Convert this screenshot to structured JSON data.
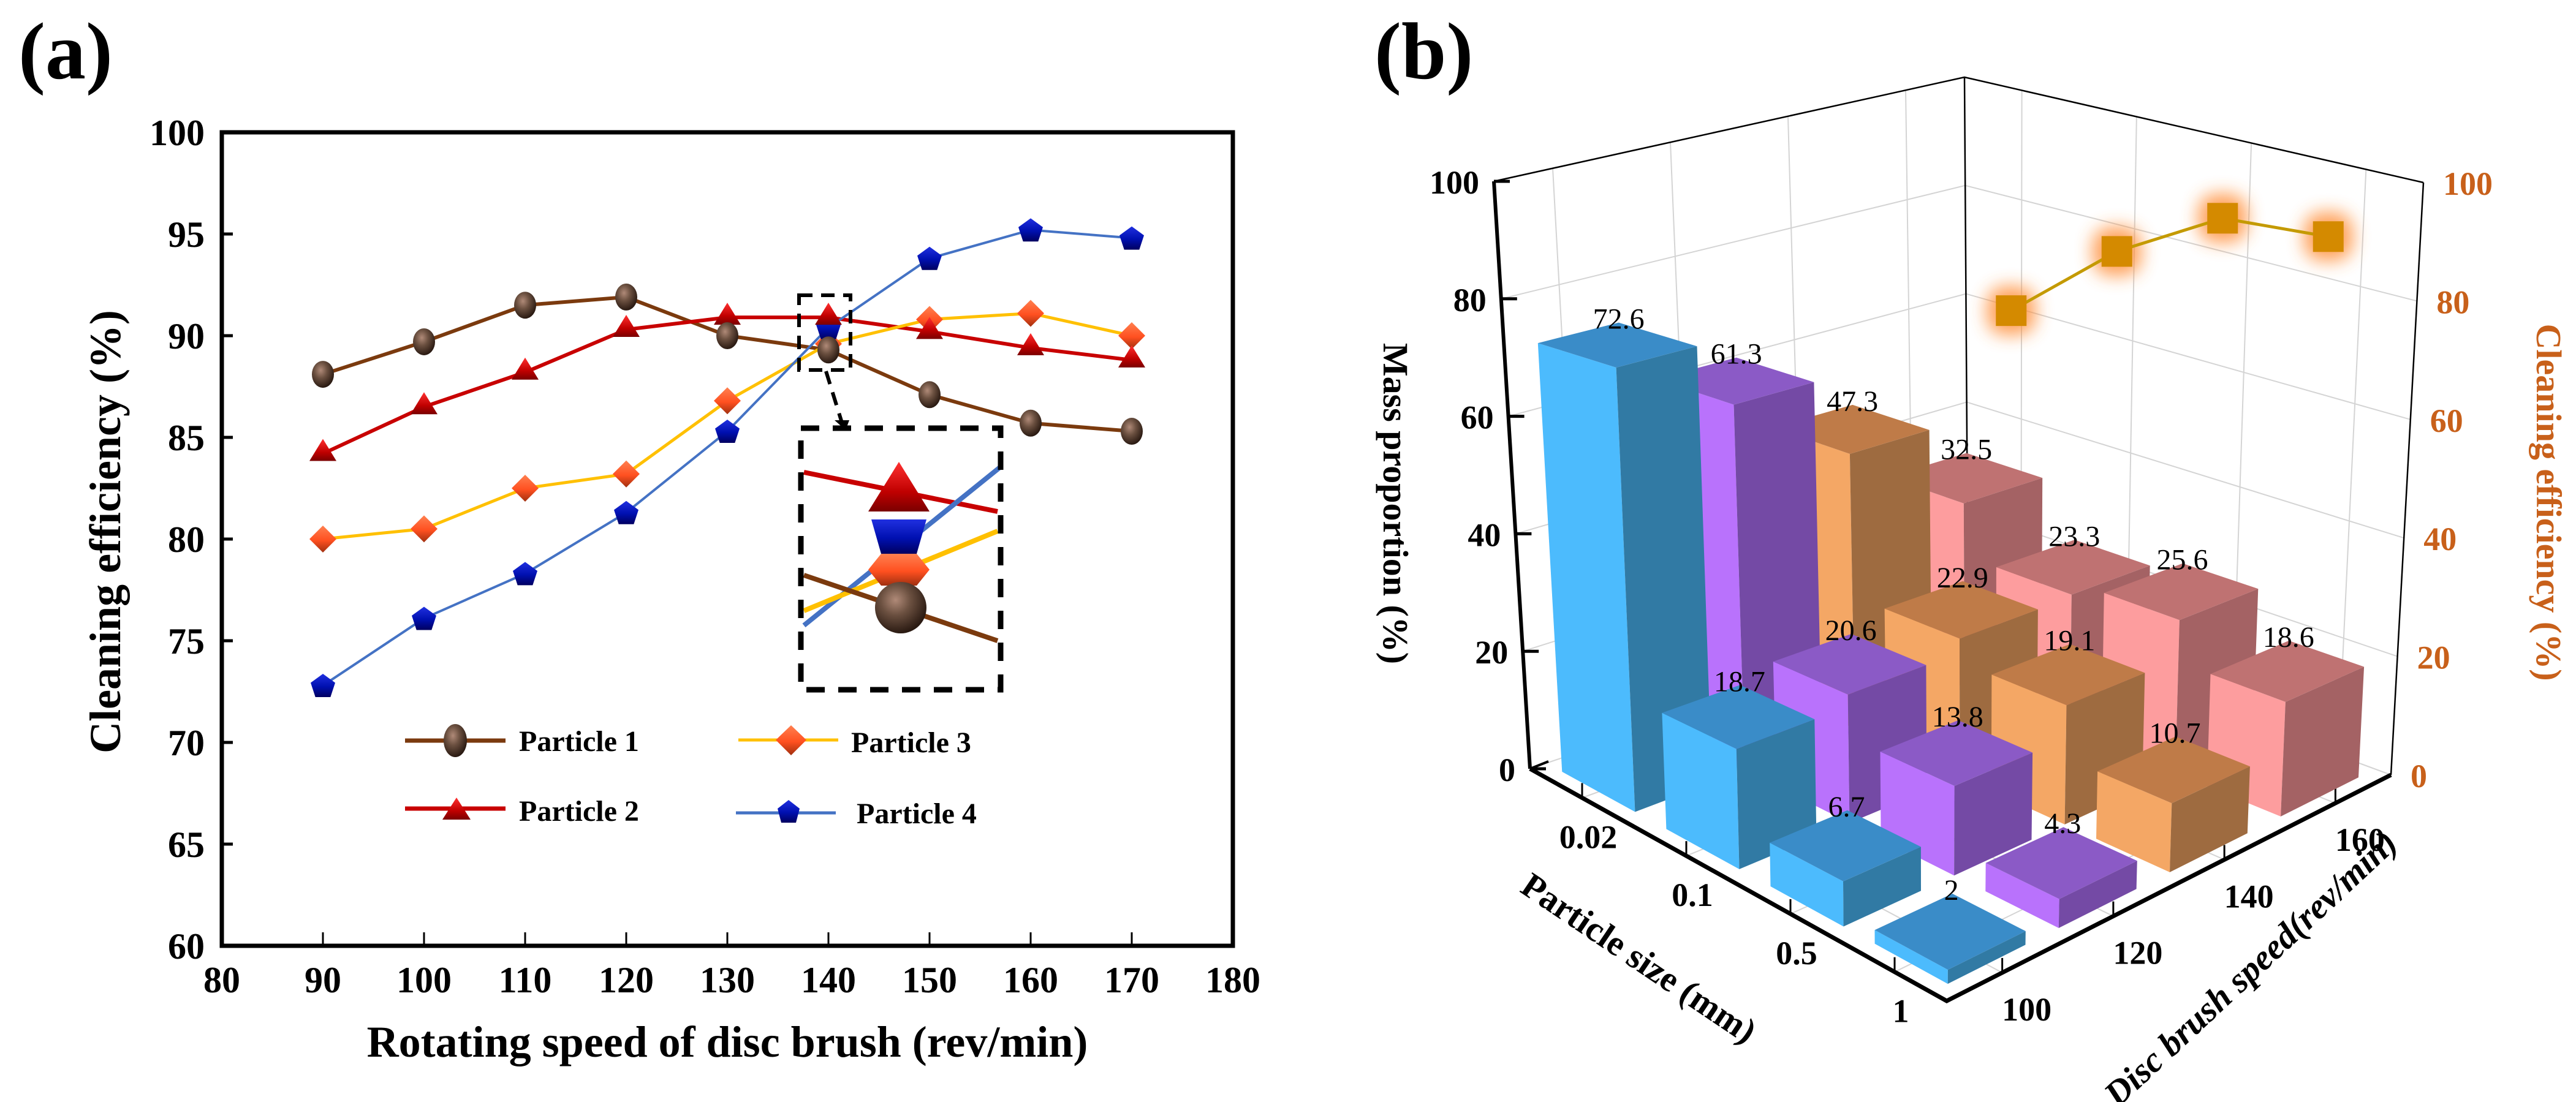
{
  "panel_a": {
    "label": "(a)",
    "legend": [
      "Particle 1",
      "Particle 2",
      "Particle 3",
      "Particle 4"
    ]
  },
  "panel_b": {
    "label": "(b)"
  },
  "colors": {
    "particle1_line": "#7B3A0E",
    "particle1_marker": "#6B5040",
    "particle2_line": "#C80000",
    "particle2_marker": "#C01010",
    "particle3_line": "#FFC000",
    "particle3_marker": "#FF5A20",
    "particle4_line": "#4472C4",
    "particle4_marker": "#0010A8",
    "right_axis": "#C8601A",
    "efficiency_line": "#C49A00",
    "efficiency_marker": "#D48A00",
    "efficiency_glow": "#FF8A30",
    "bar_100": [
      "#4CBBFD",
      "#3A8CC8",
      "#317AA4"
    ],
    "bar_120": [
      "#B972FC",
      "#8B5AC6",
      "#744AA5"
    ],
    "bar_140": [
      "#F4A765",
      "#BF7B48",
      "#9E6B40"
    ],
    "bar_160": [
      "#FD9D9E",
      "#BF7272",
      "#A46264"
    ]
  },
  "chart_data": [
    {
      "type": "line",
      "title": "",
      "xlabel": "Rotating speed of disc brush (rev/min)",
      "ylabel": "Cleaning efficiency (%)",
      "xlim": [
        80,
        180
      ],
      "ylim": [
        60,
        100
      ],
      "xticks": [
        80,
        90,
        100,
        110,
        120,
        130,
        140,
        150,
        160,
        170,
        180
      ],
      "yticks": [
        60,
        65,
        70,
        75,
        80,
        85,
        90,
        95,
        100
      ],
      "grid": false,
      "legend_position": "bottom-center",
      "x": [
        90,
        100,
        110,
        120,
        130,
        140,
        150,
        160,
        170
      ],
      "series": [
        {
          "name": "Particle 1",
          "marker": "sphere",
          "values": [
            88.1,
            89.7,
            91.5,
            91.9,
            90.0,
            89.3,
            87.1,
            85.7,
            85.3
          ]
        },
        {
          "name": "Particle 2",
          "marker": "triangle",
          "values": [
            84.2,
            86.5,
            88.2,
            90.3,
            90.9,
            90.9,
            90.2,
            89.4,
            88.8
          ]
        },
        {
          "name": "Particle 3",
          "marker": "diamond",
          "values": [
            80.0,
            80.5,
            82.5,
            83.2,
            86.8,
            89.6,
            90.8,
            91.1,
            90.0
          ]
        },
        {
          "name": "Particle 4",
          "marker": "pentagon",
          "values": [
            72.8,
            76.1,
            78.3,
            81.3,
            85.3,
            90.4,
            93.8,
            95.2,
            94.8
          ]
        }
      ],
      "annotations": [
        {
          "type": "zoom-inset",
          "target_x": 140,
          "target_y_range": [
            89,
            92
          ],
          "description": "magnified view of the crossing at 140 rev/min"
        }
      ]
    },
    {
      "type": "bar3d",
      "title": "",
      "xlabel": "Particle size (mm)",
      "ylabel": "Disc brush speed(rev/min)",
      "zlabel": "Mass proportion (%)",
      "z2label": "Cleaning efficiency (%)",
      "particle_sizes": [
        "0.02",
        "0.1",
        "0.5",
        "1"
      ],
      "speeds": [
        "100",
        "120",
        "140",
        "160"
      ],
      "zlim": [
        0,
        100
      ],
      "z2lim": [
        0,
        100
      ],
      "zticks": [
        0,
        20,
        40,
        60,
        80,
        100
      ],
      "z2ticks": [
        0,
        20,
        40,
        60,
        80,
        100
      ],
      "mass_proportion": [
        [
          72.6,
          61.3,
          47.3,
          32.5
        ],
        [
          18.7,
          20.6,
          22.9,
          23.3
        ],
        [
          6.7,
          13.8,
          19.1,
          25.6
        ],
        [
          2,
          4.3,
          10.7,
          18.6
        ]
      ],
      "mass_proportion_labels": [
        [
          "72.6",
          "61.3",
          "47.3",
          "32.5"
        ],
        [
          "18.7",
          "20.6",
          "22.9",
          "23.3"
        ],
        [
          "6.7",
          "13.8",
          "19.1",
          "25.6"
        ],
        [
          "2",
          "4.3",
          "10.7",
          "18.6"
        ]
      ],
      "cleaning_efficiency": {
        "speeds": [
          100,
          120,
          140,
          160
        ],
        "values": [
          79.2,
          89.2,
          94.8,
          91.7
        ]
      },
      "grid": true
    }
  ]
}
